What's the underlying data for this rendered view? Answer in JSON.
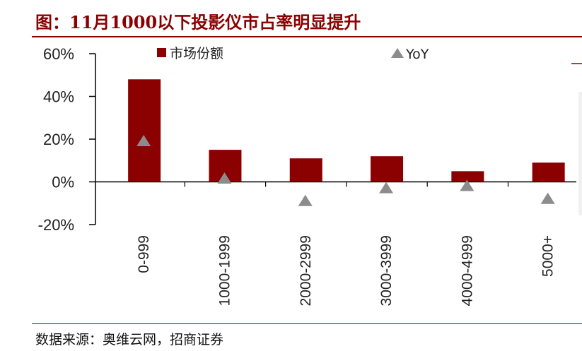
{
  "title": "图：11月1000以下投影仪市占率明显提升",
  "source": "数据来源：奥维云网，招商证券",
  "colors": {
    "bar": "#8b0000",
    "marker": "#8c8c8c",
    "accent": "#8b0000"
  },
  "chart_data": {
    "type": "bar",
    "categories": [
      "0-999",
      "1000-1999",
      "2000-2999",
      "3000-3999",
      "4000-4999",
      "5000+"
    ],
    "series": [
      {
        "name": "市场份额",
        "kind": "bar",
        "values": [
          48,
          15,
          11,
          12,
          5,
          9
        ]
      },
      {
        "name": "YoY",
        "kind": "marker",
        "marker": "triangle",
        "values": [
          19,
          1.5,
          -9,
          -3,
          -2,
          -8
        ]
      }
    ],
    "ylim": [
      -20,
      60
    ],
    "yticks": [
      "60%",
      "40%",
      "20%",
      "0%",
      "-20%"
    ],
    "ytick_values": [
      60,
      40,
      20,
      0,
      -20
    ],
    "legend_position": "top",
    "grid": false
  }
}
